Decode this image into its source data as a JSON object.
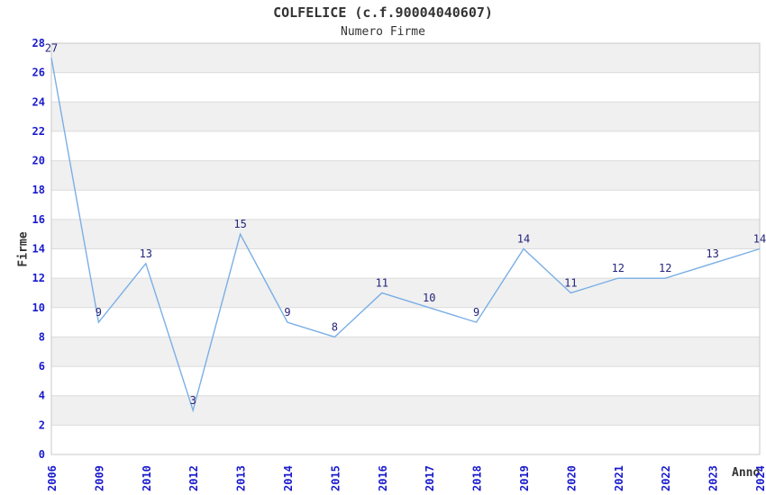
{
  "chart_data": {
    "type": "line",
    "title": "COLFELICE (c.f.90004040607)",
    "subtitle": "Numero Firme",
    "xlabel": "Anno",
    "ylabel": "Firme",
    "categories": [
      "2006",
      "2009",
      "2010",
      "2012",
      "2013",
      "2014",
      "2015",
      "2016",
      "2017",
      "2018",
      "2019",
      "2020",
      "2021",
      "2022",
      "2023",
      "2024"
    ],
    "values": [
      27,
      9,
      13,
      3,
      15,
      9,
      8,
      11,
      10,
      9,
      14,
      11,
      12,
      12,
      13,
      14
    ],
    "ylim": [
      0,
      28
    ],
    "ytick_step": 2,
    "grid": "horizontal-bands-alternating",
    "legend": "none",
    "colors": {
      "line": "#7aafe5",
      "tick_label": "#1a1acc",
      "point_label": "#24247c",
      "band": "#f0f0f0",
      "gridline": "#dcdcdc",
      "border": "#c9c9c9",
      "axis_title": "#333333",
      "title": "#333333"
    }
  }
}
